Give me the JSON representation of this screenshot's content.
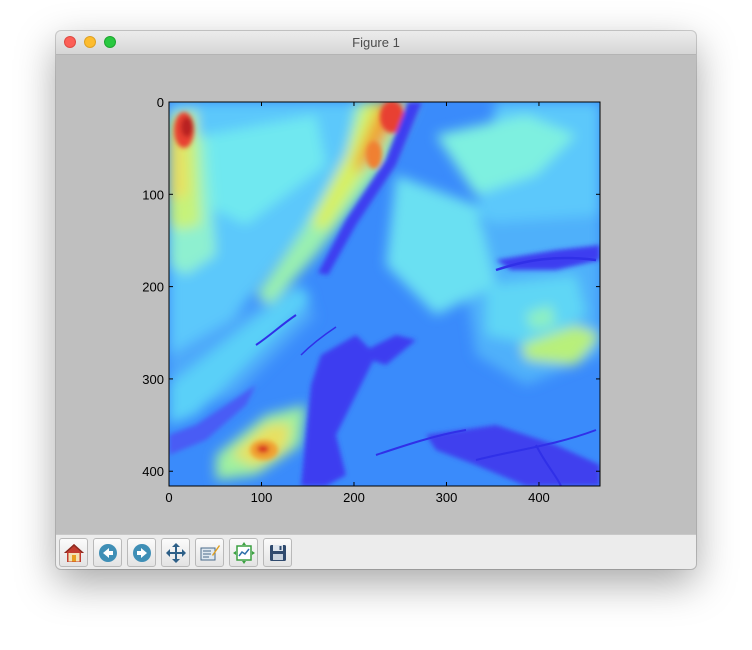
{
  "window": {
    "title": "Figure 1"
  },
  "toolbar": {
    "buttons": [
      {
        "name": "home-button",
        "icon": "home-icon"
      },
      {
        "name": "back-button",
        "icon": "back-arrow-icon"
      },
      {
        "name": "forward-button",
        "icon": "forward-arrow-icon"
      },
      {
        "name": "pan-button",
        "icon": "pan-arrows-icon"
      },
      {
        "name": "zoom-button",
        "icon": "zoom-rect-icon"
      },
      {
        "name": "subplots-button",
        "icon": "subplots-config-icon"
      },
      {
        "name": "save-button",
        "icon": "floppy-disk-icon"
      }
    ]
  },
  "chart_data": {
    "type": "heatmap",
    "colormap": "jet",
    "x_ticks": [
      "0",
      "100",
      "200",
      "300",
      "400"
    ],
    "y_ticks": [
      "0",
      "100",
      "200",
      "300",
      "400"
    ],
    "xlim": [
      0,
      466
    ],
    "ylim": [
      416,
      0
    ],
    "grid": false
  }
}
